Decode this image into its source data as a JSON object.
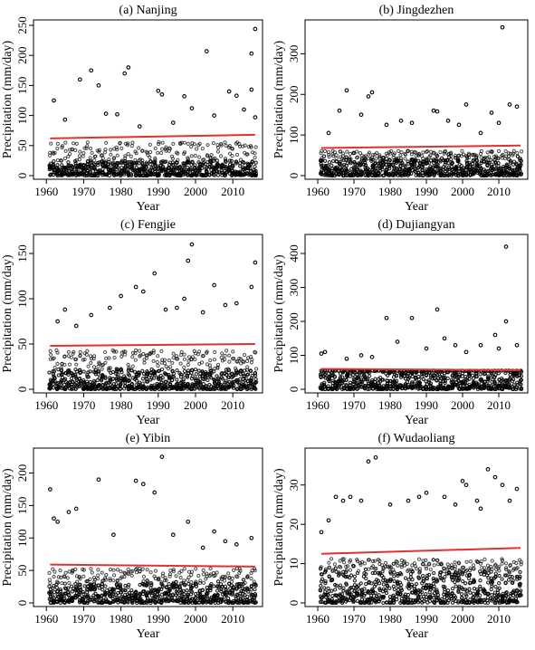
{
  "figure": {
    "panels": [
      {
        "id": "nanjing",
        "title": "(a) Nanjing"
      },
      {
        "id": "jingdezhen",
        "title": "(b) Jingdezhen"
      },
      {
        "id": "fengjie",
        "title": "(c) Fengjie"
      },
      {
        "id": "dujiangyan",
        "title": "(d) Dujiangyan"
      },
      {
        "id": "yibin",
        "title": "(e) Yibin"
      },
      {
        "id": "wudaoliang",
        "title": "(f) Wudaoliang"
      }
    ]
  },
  "colors": {
    "points": "#000000",
    "trend": "#e0322f",
    "axis": "#000000",
    "background": "#ffffff"
  },
  "chart_data": [
    {
      "type": "scatter",
      "title": "(a) Nanjing",
      "xlabel": "Year",
      "ylabel": "Precipitation (mm/day)",
      "xlim": [
        1958,
        2017
      ],
      "ylim": [
        0,
        250
      ],
      "xticks": [
        1960,
        1970,
        1980,
        1990,
        2000,
        2010
      ],
      "yticks": [
        0,
        50,
        100,
        150,
        200,
        250
      ],
      "dense_band_max": 25,
      "trend": {
        "x": [
          1961,
          2016
        ],
        "y": [
          62,
          68
        ]
      },
      "outliers": [
        {
          "x": 1962,
          "y": 125
        },
        {
          "x": 1965,
          "y": 93
        },
        {
          "x": 1969,
          "y": 160
        },
        {
          "x": 1972,
          "y": 175
        },
        {
          "x": 1974,
          "y": 150
        },
        {
          "x": 1976,
          "y": 103
        },
        {
          "x": 1979,
          "y": 102
        },
        {
          "x": 1981,
          "y": 170
        },
        {
          "x": 1982,
          "y": 180
        },
        {
          "x": 1985,
          "y": 82
        },
        {
          "x": 1990,
          "y": 141
        },
        {
          "x": 1991,
          "y": 135
        },
        {
          "x": 1994,
          "y": 88
        },
        {
          "x": 1997,
          "y": 132
        },
        {
          "x": 1999,
          "y": 112
        },
        {
          "x": 2003,
          "y": 207
        },
        {
          "x": 2005,
          "y": 100
        },
        {
          "x": 2009,
          "y": 140
        },
        {
          "x": 2011,
          "y": 133
        },
        {
          "x": 2013,
          "y": 110
        },
        {
          "x": 2015,
          "y": 203
        },
        {
          "x": 2015,
          "y": 143
        },
        {
          "x": 2016,
          "y": 244
        },
        {
          "x": 2016,
          "y": 97
        }
      ]
    },
    {
      "type": "scatter",
      "title": "(b) Jingdezhen",
      "xlabel": "Year",
      "ylabel": "Precipitation (mm/day)",
      "xlim": [
        1958,
        2017
      ],
      "ylim": [
        0,
        370
      ],
      "xticks": [
        1960,
        1970,
        1980,
        1990,
        2000,
        2010
      ],
      "yticks": [
        0,
        100,
        200,
        300
      ],
      "dense_band_max": 40,
      "trend": {
        "x": [
          1961,
          2016
        ],
        "y": [
          68,
          74
        ]
      },
      "outliers": [
        {
          "x": 1963,
          "y": 105
        },
        {
          "x": 1966,
          "y": 160
        },
        {
          "x": 1968,
          "y": 210
        },
        {
          "x": 1972,
          "y": 150
        },
        {
          "x": 1974,
          "y": 195
        },
        {
          "x": 1975,
          "y": 205
        },
        {
          "x": 1979,
          "y": 125
        },
        {
          "x": 1983,
          "y": 135
        },
        {
          "x": 1986,
          "y": 130
        },
        {
          "x": 1992,
          "y": 160
        },
        {
          "x": 1993,
          "y": 158
        },
        {
          "x": 1996,
          "y": 135
        },
        {
          "x": 1999,
          "y": 125
        },
        {
          "x": 2001,
          "y": 175
        },
        {
          "x": 2005,
          "y": 105
        },
        {
          "x": 2008,
          "y": 155
        },
        {
          "x": 2010,
          "y": 130
        },
        {
          "x": 2011,
          "y": 365
        },
        {
          "x": 2013,
          "y": 175
        },
        {
          "x": 2015,
          "y": 170
        }
      ]
    },
    {
      "type": "scatter",
      "title": "(c) Fengjie",
      "xlabel": "Year",
      "ylabel": "Precipitation (mm/day)",
      "xlim": [
        1958,
        2017
      ],
      "ylim": [
        0,
        165
      ],
      "xticks": [
        1960,
        1970,
        1980,
        1990,
        2000,
        2010
      ],
      "yticks": [
        0,
        50,
        100,
        150
      ],
      "dense_band_max": 22,
      "trend": {
        "x": [
          1961,
          2016
        ],
        "y": [
          48,
          50
        ]
      },
      "outliers": [
        {
          "x": 1963,
          "y": 75
        },
        {
          "x": 1965,
          "y": 88
        },
        {
          "x": 1968,
          "y": 70
        },
        {
          "x": 1972,
          "y": 82
        },
        {
          "x": 1977,
          "y": 90
        },
        {
          "x": 1980,
          "y": 103
        },
        {
          "x": 1984,
          "y": 113
        },
        {
          "x": 1986,
          "y": 108
        },
        {
          "x": 1989,
          "y": 128
        },
        {
          "x": 1992,
          "y": 88
        },
        {
          "x": 1995,
          "y": 90
        },
        {
          "x": 1997,
          "y": 100
        },
        {
          "x": 1998,
          "y": 142
        },
        {
          "x": 1999,
          "y": 160
        },
        {
          "x": 2002,
          "y": 85
        },
        {
          "x": 2005,
          "y": 115
        },
        {
          "x": 2008,
          "y": 93
        },
        {
          "x": 2011,
          "y": 95
        },
        {
          "x": 2015,
          "y": 113
        },
        {
          "x": 2016,
          "y": 140
        }
      ]
    },
    {
      "type": "scatter",
      "title": "(d) Dujiangyan",
      "xlabel": "Year",
      "ylabel": "Precipitation (mm/day)",
      "xlim": [
        1958,
        2017
      ],
      "ylim": [
        0,
        440
      ],
      "xticks": [
        1960,
        1970,
        1980,
        1990,
        2000,
        2010
      ],
      "yticks": [
        0,
        100,
        200,
        300,
        400
      ],
      "dense_band_max": 55,
      "trend": {
        "x": [
          1961,
          2016
        ],
        "y": [
          60,
          56
        ]
      },
      "outliers": [
        {
          "x": 1961,
          "y": 105
        },
        {
          "x": 1962,
          "y": 110
        },
        {
          "x": 1968,
          "y": 90
        },
        {
          "x": 1972,
          "y": 100
        },
        {
          "x": 1975,
          "y": 95
        },
        {
          "x": 1979,
          "y": 210
        },
        {
          "x": 1982,
          "y": 140
        },
        {
          "x": 1986,
          "y": 210
        },
        {
          "x": 1990,
          "y": 120
        },
        {
          "x": 1993,
          "y": 235
        },
        {
          "x": 1995,
          "y": 150
        },
        {
          "x": 1998,
          "y": 130
        },
        {
          "x": 2001,
          "y": 110
        },
        {
          "x": 2005,
          "y": 130
        },
        {
          "x": 2009,
          "y": 160
        },
        {
          "x": 2010,
          "y": 120
        },
        {
          "x": 2012,
          "y": 420
        },
        {
          "x": 2012,
          "y": 200
        },
        {
          "x": 2015,
          "y": 130
        }
      ]
    },
    {
      "type": "scatter",
      "title": "(e) Yibin",
      "xlabel": "Year",
      "ylabel": "Precipitation (mm/day)",
      "xlim": [
        1958,
        2017
      ],
      "ylim": [
        0,
        230
      ],
      "xticks": [
        1960,
        1970,
        1980,
        1990,
        2000,
        2010
      ],
      "yticks": [
        0,
        50,
        100,
        150,
        200
      ],
      "dense_band_max": 30,
      "trend": {
        "x": [
          1961,
          2016
        ],
        "y": [
          59,
          56
        ]
      },
      "outliers": [
        {
          "x": 1961,
          "y": 175
        },
        {
          "x": 1962,
          "y": 130
        },
        {
          "x": 1963,
          "y": 125
        },
        {
          "x": 1966,
          "y": 140
        },
        {
          "x": 1968,
          "y": 145
        },
        {
          "x": 1974,
          "y": 190
        },
        {
          "x": 1978,
          "y": 105
        },
        {
          "x": 1984,
          "y": 188
        },
        {
          "x": 1986,
          "y": 183
        },
        {
          "x": 1989,
          "y": 170
        },
        {
          "x": 1991,
          "y": 225
        },
        {
          "x": 1994,
          "y": 105
        },
        {
          "x": 1998,
          "y": 125
        },
        {
          "x": 2002,
          "y": 85
        },
        {
          "x": 2005,
          "y": 110
        },
        {
          "x": 2008,
          "y": 95
        },
        {
          "x": 2011,
          "y": 90
        },
        {
          "x": 2015,
          "y": 100
        }
      ]
    },
    {
      "type": "scatter",
      "title": "(f) Wudaoliang",
      "xlabel": "Year",
      "ylabel": "Precipitation (mm/day)",
      "xlim": [
        1958,
        2017
      ],
      "ylim": [
        0,
        38
      ],
      "xticks": [
        1960,
        1970,
        1980,
        1990,
        2000,
        2010
      ],
      "yticks": [
        0,
        10,
        20,
        30
      ],
      "dense_band_max": 8,
      "trend": {
        "x": [
          1961,
          2016
        ],
        "y": [
          12.5,
          14
        ]
      },
      "outliers": [
        {
          "x": 1961,
          "y": 18
        },
        {
          "x": 1963,
          "y": 21
        },
        {
          "x": 1965,
          "y": 27
        },
        {
          "x": 1967,
          "y": 26
        },
        {
          "x": 1969,
          "y": 27
        },
        {
          "x": 1972,
          "y": 26
        },
        {
          "x": 1974,
          "y": 36
        },
        {
          "x": 1976,
          "y": 37
        },
        {
          "x": 1980,
          "y": 25
        },
        {
          "x": 1985,
          "y": 26
        },
        {
          "x": 1988,
          "y": 27
        },
        {
          "x": 1990,
          "y": 28
        },
        {
          "x": 1995,
          "y": 27
        },
        {
          "x": 1998,
          "y": 25
        },
        {
          "x": 2000,
          "y": 31
        },
        {
          "x": 2001,
          "y": 30
        },
        {
          "x": 2004,
          "y": 26
        },
        {
          "x": 2005,
          "y": 24
        },
        {
          "x": 2007,
          "y": 34
        },
        {
          "x": 2009,
          "y": 32
        },
        {
          "x": 2011,
          "y": 30
        },
        {
          "x": 2013,
          "y": 26
        },
        {
          "x": 2015,
          "y": 29
        }
      ]
    }
  ]
}
